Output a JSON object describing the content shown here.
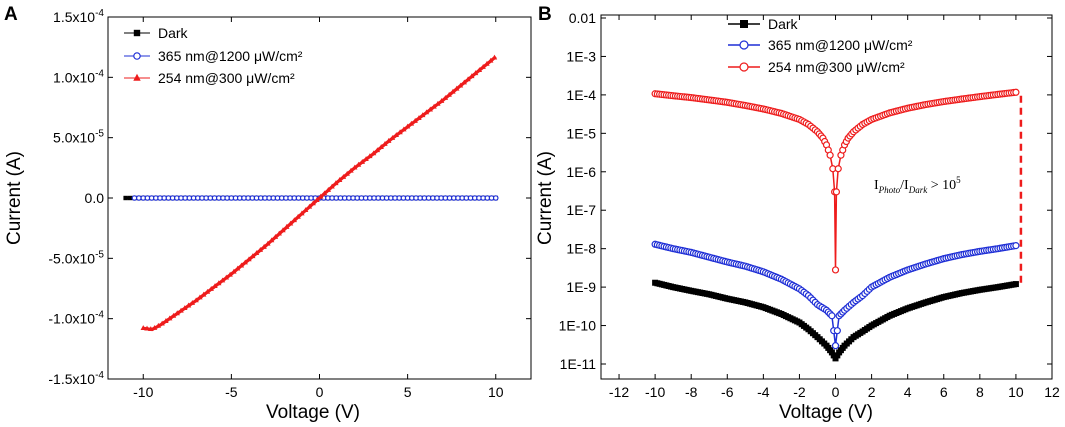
{
  "chart_data": [
    {
      "panel": "A",
      "type": "line",
      "xlabel": "Voltage (V)",
      "ylabel": "Current (A)",
      "xlim": [
        -12,
        12
      ],
      "ylim": [
        -0.00015,
        0.00015
      ],
      "xticks": [
        -10,
        -5,
        0,
        5,
        10
      ],
      "xtick_labels": [
        "-10",
        "-5",
        "0",
        "5",
        "10"
      ],
      "yticks": [
        -0.00015,
        -0.0001,
        -5e-05,
        0,
        5e-05,
        0.0001,
        0.00015
      ],
      "ytick_labels": [
        "-1.5x10",
        "-1.0x10",
        "-5.0x10",
        "0.0",
        "5.0x10",
        "1.0x10",
        "1.5x10"
      ],
      "ytick_exps": [
        "-4",
        "-4",
        "-5",
        "",
        "-5",
        "-4",
        "-4"
      ],
      "legend_position": "top-left",
      "series": [
        {
          "name": "Dark",
          "color": "#000000",
          "marker": "square",
          "x": [
            -11,
            -10.5,
            -10,
            -5,
            0,
            5,
            10
          ],
          "y": [
            0,
            0,
            0,
            0,
            0,
            0,
            0
          ]
        },
        {
          "name": "365 nm@1200 μW/cm²",
          "color": "#1f2fd6",
          "marker": "circle",
          "x": [
            -10.5,
            -10,
            -5,
            0,
            5,
            10
          ],
          "y": [
            0,
            0,
            0,
            0,
            0,
            0
          ]
        },
        {
          "name": "254 nm@300 μW/cm²",
          "color": "#ee1c1c",
          "marker": "triangle",
          "x": [
            -10,
            -9.5,
            -9,
            -8,
            -7,
            -6,
            -5,
            -4,
            -3,
            -2,
            -1,
            0,
            1,
            2,
            3,
            4,
            5,
            6,
            7,
            8,
            9,
            10
          ],
          "y": [
            -0.000108,
            -0.000109,
            -0.000105,
            -9.5e-05,
            -8.5e-05,
            -7.4e-05,
            -6.3e-05,
            -5.1e-05,
            -3.9e-05,
            -2.6e-05,
            -1.3e-05,
            0,
            1.3e-05,
            2.5e-05,
            3.6e-05,
            4.8e-05,
            5.9e-05,
            7e-05,
            8.1e-05,
            9.3e-05,
            0.000105,
            0.000117
          ]
        }
      ]
    },
    {
      "panel": "B",
      "type": "line",
      "xlabel": "Voltage (V)",
      "ylabel": "Current (A)",
      "xlim": [
        -13,
        12
      ],
      "ylim_log10": [
        -11,
        -2
      ],
      "xticks": [
        -12,
        -10,
        -8,
        -6,
        -4,
        -2,
        0,
        2,
        4,
        6,
        8,
        10,
        12
      ],
      "xtick_labels": [
        "-12",
        "-10",
        "-8",
        "-6",
        "-4",
        "-2",
        "0",
        "2",
        "4",
        "6",
        "8",
        "10",
        "12"
      ],
      "ytick_labels": [
        "0.01",
        "1E-3",
        "1E-4",
        "1E-5",
        "1E-6",
        "1E-7",
        "1E-8",
        "1E-9",
        "1E-10",
        "1E-11"
      ],
      "legend_position": "top-center",
      "annotation": {
        "text": "IPhoto/IDark > 10",
        "main": "I",
        "sub1": "Photo",
        "mid": "/I",
        "sub2": "Dark",
        "rel": " > 10",
        "sup": "5",
        "x_data": 10,
        "from": 1.2e-09,
        "to": 9.5e-05
      },
      "series": [
        {
          "name": "Dark",
          "color": "#000000",
          "marker": "square",
          "x": [
            -10,
            -9,
            -8,
            -7,
            -6,
            -5,
            -4,
            -3,
            -2,
            -1.5,
            -1,
            -0.5,
            -0.2,
            0,
            0.2,
            0.5,
            1,
            1.5,
            2,
            3,
            4,
            5,
            6,
            7,
            8,
            9,
            10
          ],
          "y": [
            1.3e-09,
            1e-09,
            8e-10,
            6.5e-10,
            5e-10,
            4e-10,
            3e-10,
            2e-10,
            1.2e-10,
            8e-11,
            5e-11,
            3e-11,
            2e-11,
            1.4e-11,
            2e-11,
            3e-11,
            5e-11,
            7e-11,
            1e-10,
            1.8e-10,
            2.8e-10,
            4e-10,
            5.5e-10,
            7e-10,
            8.5e-10,
            1e-09,
            1.2e-09
          ]
        },
        {
          "name": "365 nm@1200 μW/cm²",
          "color": "#1f2fd6",
          "marker": "circle",
          "x": [
            -10,
            -9,
            -8,
            -7,
            -6,
            -5,
            -4,
            -3,
            -2,
            -1.5,
            -1,
            -0.5,
            -0.2,
            0,
            0.2,
            0.5,
            1,
            1.5,
            2,
            3,
            4,
            5,
            6,
            7,
            8,
            9,
            10
          ],
          "y": [
            1.3e-08,
            1e-08,
            8e-09,
            6e-09,
            4.5e-09,
            3.5e-09,
            2.5e-09,
            1.6e-09,
            9e-10,
            6e-10,
            3.5e-10,
            2.5e-10,
            1.8e-10,
            3e-11,
            1.8e-10,
            2.5e-10,
            4e-10,
            6e-10,
            1e-09,
            1.8e-09,
            2.8e-09,
            4e-09,
            5.5e-09,
            7e-09,
            8.5e-09,
            1e-08,
            1.2e-08
          ]
        },
        {
          "name": "254 nm@300 μW/cm²",
          "color": "#ee1c1c",
          "marker": "circle",
          "x": [
            -10,
            -9,
            -8,
            -7,
            -6,
            -5,
            -4,
            -3,
            -2,
            -1.5,
            -1,
            -0.7,
            -0.5,
            -0.3,
            -0.15,
            -0.05,
            0,
            0.05,
            0.15,
            0.3,
            0.5,
            0.7,
            1,
            1.5,
            2,
            3,
            4,
            5,
            6,
            7,
            8,
            9,
            10
          ],
          "y": [
            0.000107,
            9.5e-05,
            8.5e-05,
            7.4e-05,
            6.4e-05,
            5.3e-05,
            4.3e-05,
            3.3e-05,
            2.3e-05,
            1.7e-05,
            1.1e-05,
            7.5e-06,
            5e-06,
            2.7e-06,
            1.2e-06,
            3e-07,
            2.8e-09,
            3e-07,
            1.2e-06,
            2.7e-06,
            5e-06,
            7.5e-06,
            1.1e-05,
            1.7e-05,
            2.3e-05,
            3.4e-05,
            4.5e-05,
            5.6e-05,
            6.7e-05,
            7.8e-05,
            9e-05,
            0.000103,
            0.000117
          ]
        }
      ]
    }
  ]
}
